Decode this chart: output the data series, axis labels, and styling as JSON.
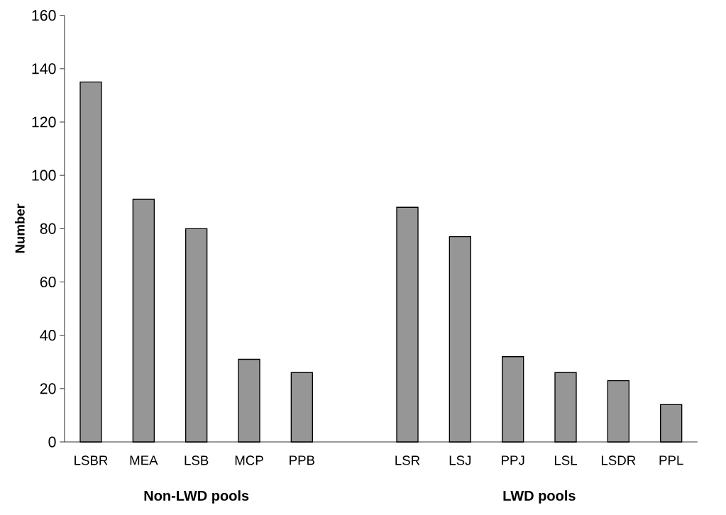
{
  "chart_data": {
    "type": "bar",
    "ylabel": "Number",
    "categories": [
      "LSBR",
      "MEA",
      "LSB",
      "MCP",
      "PPB",
      null,
      "LSR",
      "LSJ",
      "PPJ",
      "LSL",
      "LSDR",
      "PPL"
    ],
    "values": [
      135,
      91,
      80,
      31,
      26,
      null,
      88,
      77,
      32,
      26,
      23,
      14
    ],
    "color": "#969696",
    "ylim": [
      0,
      160
    ],
    "yticks": [
      0,
      20,
      40,
      60,
      80,
      100,
      120,
      140,
      160
    ],
    "annotations": [
      "Non-LWD pools",
      "LWD pools"
    ]
  }
}
